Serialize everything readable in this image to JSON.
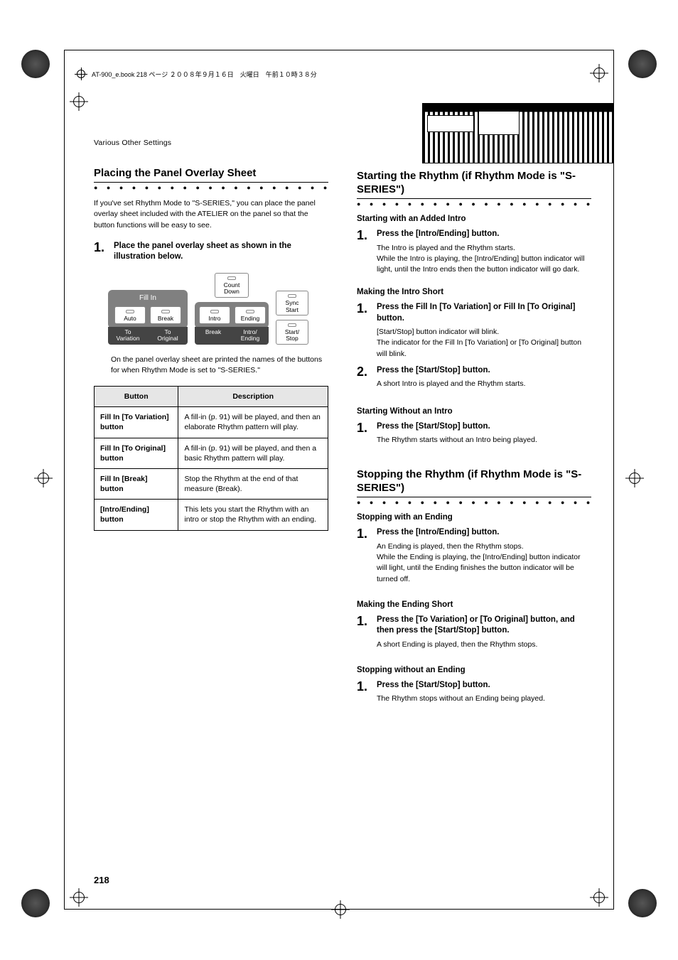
{
  "header": {
    "book_info": "AT-900_e.book  218 ページ  ２００８年９月１６日　火曜日　午前１０時３８分"
  },
  "section_label": "Various Other Settings",
  "page_number": "218",
  "left": {
    "title": "Placing the Panel Overlay Sheet",
    "intro": "If you've set Rhythm Mode to \"S-SERIES,\" you can place the panel overlay sheet included with the ATELIER on the panel so that the button functions will be easy to see.",
    "step1": {
      "num": "1.",
      "head": "Place the panel overlay sheet as shown in the illustration below."
    },
    "panel": {
      "fill_in_label": "Fill In",
      "count_down": "Count\nDown",
      "sync_start": "Sync\nStart",
      "auto": "Auto",
      "break": "Break",
      "intro": "Intro",
      "ending": "Ending",
      "start_stop": "Start/\nStop",
      "overlay": {
        "to_variation": "To\nVariation",
        "to_original": "To\nOriginal",
        "break": "Break",
        "intro_ending": "Intro/\nEnding"
      }
    },
    "caption": "On the panel overlay sheet are printed the names of the buttons for when Rhythm Mode is set to \"S-SERIES.\"",
    "table": {
      "headers": [
        "Button",
        "Description"
      ],
      "rows": [
        [
          "Fill In [To Variation] button",
          "A fill-in (p. 91) will be played, and then an elaborate Rhythm pattern will play."
        ],
        [
          "Fill In [To Original] button",
          "A fill-in (p. 91) will be played, and then a basic Rhythm pattern will play."
        ],
        [
          "Fill In [Break] button",
          "Stop the Rhythm at the end of that measure (Break)."
        ],
        [
          "[Intro/Ending] button",
          "This lets you start the Rhythm with an intro or stop the Rhythm with an ending."
        ]
      ]
    }
  },
  "right": {
    "start": {
      "title": "Starting the Rhythm (if Rhythm Mode is \"S-SERIES\")",
      "sub1": "Starting with an Added Intro",
      "s1": {
        "num": "1.",
        "head": "Press the [Intro/Ending] button.",
        "desc1": "The Intro is played and the Rhythm starts.",
        "desc2": "While the Intro is playing, the [Intro/Ending] button indicator will light, until the Intro ends then the button indicator will go dark."
      },
      "sub2": "Making the Intro Short",
      "s2a": {
        "num": "1.",
        "head": "Press the Fill In [To Variation] or Fill In [To Original] button.",
        "desc1": "[Start/Stop] button indicator will blink.",
        "desc2": "The indicator for the Fill In [To Variation] or [To Original] button will blink."
      },
      "s2b": {
        "num": "2.",
        "head": "Press the [Start/Stop] button.",
        "desc": "A short Intro is played and the Rhythm starts."
      },
      "sub3": "Starting Without an Intro",
      "s3": {
        "num": "1.",
        "head": "Press the [Start/Stop] button.",
        "desc": "The Rhythm starts without an Intro being played."
      }
    },
    "stop": {
      "title": "Stopping the Rhythm (if Rhythm Mode is \"S-SERIES\")",
      "sub1": "Stopping with an Ending",
      "s1": {
        "num": "1.",
        "head": "Press the [Intro/Ending] button.",
        "desc1": "An Ending is played, then the Rhythm stops.",
        "desc2": "While the Ending is playing, the [Intro/Ending] button indicator will light, until the Ending finishes the button indicator will be turned off."
      },
      "sub2": "Making the Ending Short",
      "s2": {
        "num": "1.",
        "head": "Press the [To Variation] or [To Original] button, and then press the [Start/Stop] button.",
        "desc": "A short Ending is played, then the Rhythm stops."
      },
      "sub3": "Stopping without an Ending",
      "s3": {
        "num": "1.",
        "head": "Press the [Start/Stop] button.",
        "desc": "The Rhythm stops without an Ending being played."
      }
    }
  }
}
